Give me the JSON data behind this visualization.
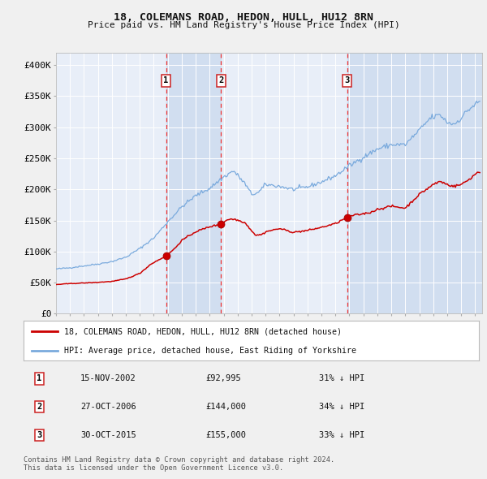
{
  "title": "18, COLEMANS ROAD, HEDON, HULL, HU12 8RN",
  "subtitle": "Price paid vs. HM Land Registry's House Price Index (HPI)",
  "legend_line1": "18, COLEMANS ROAD, HEDON, HULL, HU12 8RN (detached house)",
  "legend_line2": "HPI: Average price, detached house, East Riding of Yorkshire",
  "footer1": "Contains HM Land Registry data © Crown copyright and database right 2024.",
  "footer2": "This data is licensed under the Open Government Licence v3.0.",
  "transactions": [
    {
      "num": 1,
      "date": "15-NOV-2002",
      "price": 92995,
      "pct": "31% ↓ HPI",
      "date_x": 2002.875
    },
    {
      "num": 2,
      "date": "27-OCT-2006",
      "price": 144000,
      "pct": "34% ↓ HPI",
      "date_x": 2006.82
    },
    {
      "num": 3,
      "date": "30-OCT-2015",
      "price": 155000,
      "pct": "33% ↓ HPI",
      "date_x": 2015.829
    }
  ],
  "fig_bg": "#f0f0f0",
  "chart_bg": "#e8eef8",
  "grid_color": "#ffffff",
  "shade_color": "#c8d8ee",
  "hpi_color": "#7aaadd",
  "price_color": "#cc0000",
  "dashed_color": "#ee3333",
  "marker_color": "#cc0000",
  "box_edge_color": "#cc2222",
  "legend_bg": "#ffffff",
  "ylim": [
    0,
    420000
  ],
  "yticks": [
    0,
    50000,
    100000,
    150000,
    200000,
    250000,
    300000,
    350000,
    400000
  ],
  "ytick_labels": [
    "£0",
    "£50K",
    "£100K",
    "£150K",
    "£200K",
    "£250K",
    "£300K",
    "£350K",
    "£400K"
  ],
  "xmin": 1995.0,
  "xmax": 2025.5
}
